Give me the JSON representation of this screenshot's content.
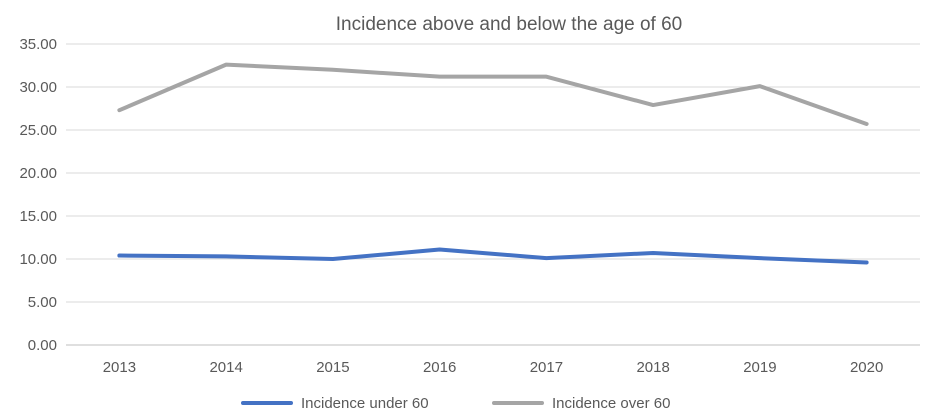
{
  "chart_data": {
    "type": "line",
    "title": "Incidence above and below the age of 60",
    "xlabel": "",
    "ylabel": "",
    "categories": [
      "2013",
      "2014",
      "2015",
      "2016",
      "2017",
      "2018",
      "2019",
      "2020"
    ],
    "series": [
      {
        "name": "Incidence under 60",
        "color": "#4472C4",
        "values": [
          10.4,
          10.3,
          10.0,
          11.1,
          10.1,
          10.7,
          10.1,
          9.6
        ]
      },
      {
        "name": "Incidence over 60",
        "color": "#A5A5A5",
        "values": [
          27.3,
          32.6,
          32.0,
          31.2,
          31.2,
          27.9,
          30.1,
          25.7
        ]
      }
    ],
    "ylim": [
      0,
      35
    ],
    "yticks": [
      "0.00",
      "5.00",
      "10.00",
      "15.00",
      "20.00",
      "25.00",
      "30.00",
      "35.00"
    ],
    "grid": true,
    "legend_position": "bottom"
  }
}
